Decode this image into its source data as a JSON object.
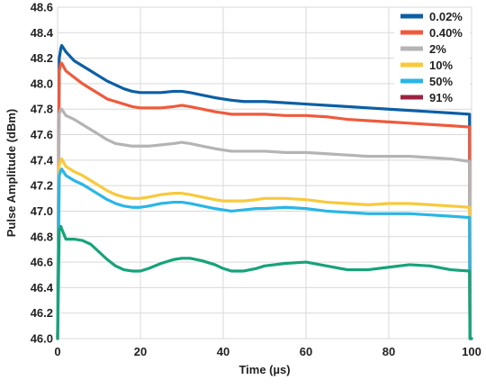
{
  "chart_data": {
    "type": "line",
    "title": "",
    "xlabel": "Time (µs)",
    "ylabel": "Pulse Amplitude (dBm)",
    "xlim": [
      0,
      100
    ],
    "ylim": [
      46.0,
      48.6
    ],
    "xticks": [
      0,
      20,
      40,
      60,
      80,
      100
    ],
    "yticks": [
      "46.0",
      "46.2",
      "46.4",
      "46.6",
      "46.8",
      "47.0",
      "47.2",
      "47.4",
      "47.6",
      "47.8",
      "48.0",
      "48.2",
      "48.4",
      "48.6"
    ],
    "grid": true,
    "legend_position": "top-right",
    "series": [
      {
        "name": "0.02%",
        "color": "#0b5fa5",
        "x": [
          0,
          0.4,
          0.8,
          1,
          2,
          4,
          6,
          8,
          10,
          12,
          14,
          16,
          18,
          20,
          22,
          25,
          28,
          30,
          32,
          35,
          38,
          40,
          42,
          45,
          48,
          50,
          55,
          60,
          65,
          70,
          75,
          80,
          85,
          90,
          95,
          99.5,
          99.6,
          100
        ],
        "y": [
          46.0,
          48.2,
          48.28,
          48.3,
          48.25,
          48.18,
          48.14,
          48.1,
          48.06,
          48.02,
          47.99,
          47.96,
          47.94,
          47.93,
          47.93,
          47.93,
          47.94,
          47.94,
          47.93,
          47.91,
          47.89,
          47.88,
          47.87,
          47.86,
          47.86,
          47.86,
          47.85,
          47.84,
          47.83,
          47.82,
          47.81,
          47.8,
          47.79,
          47.78,
          47.77,
          47.76,
          46.0,
          46.0
        ]
      },
      {
        "name": "0.40%",
        "color": "#ef5a3c",
        "x": [
          0,
          0.4,
          0.8,
          1,
          2,
          4,
          6,
          8,
          10,
          12,
          14,
          16,
          18,
          20,
          22,
          25,
          28,
          30,
          32,
          35,
          38,
          40,
          42,
          45,
          48,
          50,
          55,
          60,
          65,
          70,
          75,
          80,
          85,
          90,
          95,
          99.5,
          99.6,
          100
        ],
        "y": [
          46.0,
          48.1,
          48.16,
          48.16,
          48.1,
          48.05,
          48.0,
          47.96,
          47.92,
          47.88,
          47.86,
          47.84,
          47.82,
          47.81,
          47.81,
          47.81,
          47.82,
          47.83,
          47.82,
          47.8,
          47.78,
          47.77,
          47.76,
          47.76,
          47.76,
          47.76,
          47.75,
          47.75,
          47.74,
          47.72,
          47.71,
          47.7,
          47.69,
          47.68,
          47.67,
          47.66,
          46.0,
          46.0
        ]
      },
      {
        "name": "2%",
        "color": "#b4b4b4",
        "x": [
          0,
          0.4,
          0.8,
          1,
          2,
          4,
          6,
          8,
          10,
          12,
          14,
          16,
          18,
          20,
          22,
          25,
          28,
          30,
          32,
          35,
          38,
          40,
          42,
          45,
          48,
          50,
          55,
          60,
          65,
          70,
          75,
          80,
          85,
          90,
          95,
          99.5,
          99.6,
          100
        ],
        "y": [
          46.0,
          47.76,
          47.8,
          47.8,
          47.75,
          47.72,
          47.68,
          47.64,
          47.6,
          47.56,
          47.53,
          47.52,
          47.51,
          47.51,
          47.51,
          47.52,
          47.53,
          47.54,
          47.53,
          47.51,
          47.49,
          47.48,
          47.47,
          47.47,
          47.47,
          47.47,
          47.46,
          47.46,
          47.45,
          47.44,
          47.43,
          47.43,
          47.43,
          47.42,
          47.41,
          47.39,
          46.0,
          46.0
        ]
      },
      {
        "name": "10%",
        "color": "#f8c93b",
        "x": [
          0,
          0.4,
          0.8,
          1,
          2,
          4,
          6,
          8,
          10,
          12,
          14,
          16,
          18,
          20,
          22,
          25,
          28,
          30,
          32,
          35,
          38,
          40,
          42,
          45,
          48,
          50,
          55,
          60,
          65,
          70,
          75,
          80,
          85,
          90,
          95,
          99.5,
          99.6,
          100
        ],
        "y": [
          46.0,
          47.36,
          47.4,
          47.41,
          47.35,
          47.31,
          47.28,
          47.24,
          47.2,
          47.16,
          47.13,
          47.11,
          47.1,
          47.1,
          47.11,
          47.13,
          47.14,
          47.14,
          47.13,
          47.11,
          47.09,
          47.08,
          47.08,
          47.08,
          47.09,
          47.1,
          47.1,
          47.09,
          47.07,
          47.06,
          47.05,
          47.06,
          47.06,
          47.05,
          47.04,
          47.03,
          46.0,
          46.0
        ]
      },
      {
        "name": "50%",
        "color": "#29b6e6",
        "x": [
          0,
          0.4,
          0.8,
          1,
          2,
          4,
          6,
          8,
          10,
          12,
          14,
          16,
          18,
          20,
          22,
          25,
          28,
          30,
          32,
          35,
          38,
          40,
          42,
          45,
          48,
          50,
          55,
          60,
          65,
          70,
          75,
          80,
          85,
          90,
          95,
          99.5,
          99.6,
          100
        ],
        "y": [
          46.0,
          47.28,
          47.32,
          47.33,
          47.28,
          47.24,
          47.21,
          47.17,
          47.13,
          47.09,
          47.06,
          47.04,
          47.03,
          47.03,
          47.04,
          47.06,
          47.07,
          47.07,
          47.06,
          47.04,
          47.02,
          47.01,
          47.0,
          47.01,
          47.02,
          47.02,
          47.03,
          47.02,
          47.0,
          46.99,
          46.98,
          46.98,
          46.98,
          46.97,
          46.96,
          46.95,
          46.0,
          46.0
        ]
      },
      {
        "name": "91%",
        "color": "#9e2140",
        "x": [
          0,
          0.4,
          0.8,
          1,
          2,
          4,
          6,
          8,
          10,
          12,
          14,
          16,
          18,
          20,
          22,
          25,
          28,
          30,
          32,
          35,
          38,
          40,
          42,
          45,
          48,
          50,
          55,
          60,
          65,
          70,
          75,
          80,
          85,
          90,
          95,
          99.5,
          99.6,
          100
        ],
        "y": [
          46.0,
          46.85,
          46.88,
          46.86,
          46.78,
          46.78,
          46.77,
          46.74,
          46.68,
          46.62,
          46.57,
          46.54,
          46.53,
          46.53,
          46.55,
          46.59,
          46.62,
          46.63,
          46.63,
          46.61,
          46.58,
          46.55,
          46.53,
          46.53,
          46.55,
          46.57,
          46.59,
          46.6,
          46.57,
          46.54,
          46.54,
          46.56,
          46.58,
          46.57,
          46.54,
          46.53,
          46.0,
          46.0
        ]
      }
    ],
    "visible_line_colors": {
      "91%": "#16a37a"
    }
  }
}
